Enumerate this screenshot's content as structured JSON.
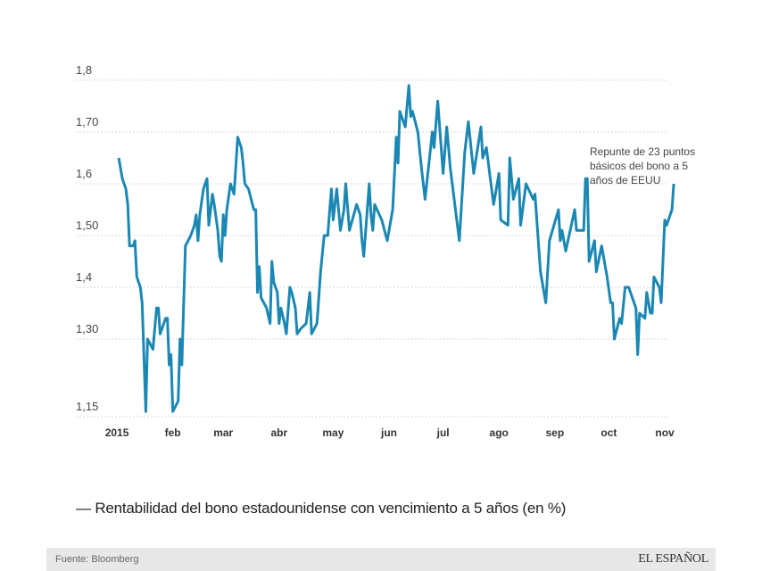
{
  "chart_data": {
    "type": "line",
    "title": "",
    "xlabel": "",
    "ylabel": "",
    "ylim": [
      1.15,
      1.8
    ],
    "y_ticks": [
      "1,8",
      "1,70",
      "1,6",
      "1,50",
      "1,4",
      "1,30",
      "1,15"
    ],
    "y_tick_values": [
      1.8,
      1.7,
      1.6,
      1.5,
      1.4,
      1.3,
      1.15
    ],
    "x_ticks": [
      "2015",
      "feb",
      "mar",
      "abr",
      "may",
      "jun",
      "jul",
      "ago",
      "sep",
      "oct",
      "nov"
    ],
    "x_tick_dates": [
      "2015-01-01",
      "2015-02-01",
      "2015-03-01",
      "2015-04-01",
      "2015-05-01",
      "2015-06-01",
      "2015-07-01",
      "2015-08-01",
      "2015-09-01",
      "2015-10-01",
      "2015-11-01"
    ],
    "grid": true,
    "line_color": "#1b87b3",
    "series": [
      {
        "x": [
          "2015-01-02",
          "2015-01-04",
          "2015-01-06",
          "2015-01-07",
          "2015-01-08",
          "2015-01-10",
          "2015-01-11",
          "2015-01-12",
          "2015-01-14",
          "2015-01-15",
          "2015-01-17",
          "2015-01-18",
          "2015-01-21",
          "2015-01-23",
          "2015-01-24",
          "2015-01-25",
          "2015-01-28",
          "2015-01-29",
          "2015-01-30",
          "2015-01-31",
          "2015-02-01",
          "2015-02-04",
          "2015-02-05",
          "2015-02-06",
          "2015-02-08",
          "2015-02-11",
          "2015-02-13",
          "2015-02-14",
          "2015-02-15",
          "2015-02-16",
          "2015-02-18",
          "2015-02-20",
          "2015-02-21",
          "2015-02-23",
          "2015-02-24",
          "2015-02-26",
          "2015-02-27",
          "2015-02-28",
          "2015-03-01",
          "2015-03-02",
          "2015-03-03",
          "2015-03-05",
          "2015-03-07",
          "2015-03-09",
          "2015-03-11",
          "2015-03-12",
          "2015-03-13",
          "2015-03-15",
          "2015-03-18",
          "2015-03-19",
          "2015-03-20",
          "2015-03-21",
          "2015-03-22",
          "2015-03-25",
          "2015-03-27",
          "2015-03-28",
          "2015-03-29",
          "2015-03-31",
          "2015-04-01",
          "2015-04-02",
          "2015-04-04",
          "2015-04-05",
          "2015-04-07",
          "2015-04-08",
          "2015-04-10",
          "2015-04-11",
          "2015-04-13",
          "2015-04-16",
          "2015-04-18",
          "2015-04-19",
          "2015-04-22",
          "2015-04-23",
          "2015-04-24",
          "2015-04-26",
          "2015-04-28",
          "2015-04-30",
          "2015-05-01",
          "2015-05-03",
          "2015-05-05",
          "2015-05-07",
          "2015-05-08",
          "2015-05-10",
          "2015-05-14",
          "2015-05-16",
          "2015-05-17",
          "2015-05-18",
          "2015-05-21",
          "2015-05-22",
          "2015-05-23",
          "2015-05-24",
          "2015-05-28",
          "2015-05-31",
          "2015-06-03",
          "2015-06-05",
          "2015-06-06",
          "2015-06-07",
          "2015-06-10",
          "2015-06-12",
          "2015-06-13",
          "2015-06-14",
          "2015-06-17",
          "2015-06-19",
          "2015-06-21",
          "2015-06-25",
          "2015-06-26",
          "2015-06-28",
          "2015-07-01",
          "2015-07-03",
          "2015-07-05",
          "2015-07-10",
          "2015-07-13",
          "2015-07-15",
          "2015-07-18",
          "2015-07-22",
          "2015-07-23",
          "2015-07-25",
          "2015-07-29",
          "2015-08-01",
          "2015-08-02",
          "2015-08-06",
          "2015-08-07",
          "2015-08-09",
          "2015-08-12",
          "2015-08-13",
          "2015-08-16",
          "2015-08-20",
          "2015-08-21",
          "2015-08-24",
          "2015-08-27",
          "2015-08-29",
          "2015-09-03",
          "2015-09-04",
          "2015-09-05",
          "2015-09-07",
          "2015-09-12",
          "2015-09-13",
          "2015-09-17",
          "2015-09-18",
          "2015-09-19",
          "2015-09-20",
          "2015-09-23",
          "2015-09-24",
          "2015-09-27",
          "2015-09-30",
          "2015-10-02",
          "2015-10-03",
          "2015-10-04",
          "2015-10-07",
          "2015-10-08",
          "2015-10-10",
          "2015-10-12",
          "2015-10-16",
          "2015-10-17",
          "2015-10-18",
          "2015-10-21",
          "2015-10-22",
          "2015-10-24",
          "2015-10-25",
          "2015-10-26",
          "2015-10-29",
          "2015-10-30",
          "2015-11-01",
          "2015-11-02",
          "2015-11-05",
          "2015-11-06"
        ],
        "values": [
          1.65,
          1.61,
          1.59,
          1.56,
          1.48,
          1.48,
          1.49,
          1.42,
          1.4,
          1.37,
          1.16,
          1.3,
          1.28,
          1.36,
          1.36,
          1.31,
          1.34,
          1.34,
          1.25,
          1.27,
          1.16,
          1.18,
          1.3,
          1.25,
          1.48,
          1.5,
          1.52,
          1.54,
          1.49,
          1.54,
          1.59,
          1.61,
          1.52,
          1.58,
          1.56,
          1.51,
          1.46,
          1.45,
          1.54,
          1.5,
          1.55,
          1.6,
          1.58,
          1.69,
          1.67,
          1.64,
          1.6,
          1.59,
          1.55,
          1.55,
          1.39,
          1.44,
          1.38,
          1.36,
          1.33,
          1.45,
          1.41,
          1.39,
          1.33,
          1.36,
          1.33,
          1.31,
          1.4,
          1.39,
          1.36,
          1.31,
          1.32,
          1.33,
          1.39,
          1.31,
          1.33,
          1.38,
          1.43,
          1.5,
          1.5,
          1.59,
          1.53,
          1.59,
          1.51,
          1.55,
          1.6,
          1.51,
          1.56,
          1.54,
          1.49,
          1.46,
          1.6,
          1.54,
          1.51,
          1.56,
          1.53,
          1.49,
          1.55,
          1.69,
          1.64,
          1.74,
          1.71,
          1.79,
          1.73,
          1.74,
          1.7,
          1.63,
          1.57,
          1.7,
          1.67,
          1.76,
          1.62,
          1.71,
          1.63,
          1.49,
          1.66,
          1.72,
          1.62,
          1.71,
          1.65,
          1.67,
          1.56,
          1.62,
          1.53,
          1.52,
          1.65,
          1.57,
          1.61,
          1.52,
          1.6,
          1.57,
          1.58,
          1.43,
          1.37,
          1.49,
          1.55,
          1.49,
          1.51,
          1.47,
          1.55,
          1.51,
          1.51,
          1.61,
          1.61,
          1.45,
          1.49,
          1.43,
          1.48,
          1.42,
          1.37,
          1.37,
          1.3,
          1.34,
          1.33,
          1.4,
          1.4,
          1.36,
          1.27,
          1.35,
          1.34,
          1.39,
          1.35,
          1.35,
          1.42,
          1.4,
          1.37,
          1.53,
          1.52,
          1.55,
          1.6
        ]
      }
    ],
    "annotation": [
      "Repunte de 23 puntos",
      "básicos del bono a 5",
      "años de EEUU"
    ]
  },
  "legend": "— Rentabilidad del bono estadounidense con vencimiento a 5 años (en %)",
  "footer": {
    "source": "Fuente: Bloomberg",
    "logo": "EL ESPAÑOL"
  }
}
